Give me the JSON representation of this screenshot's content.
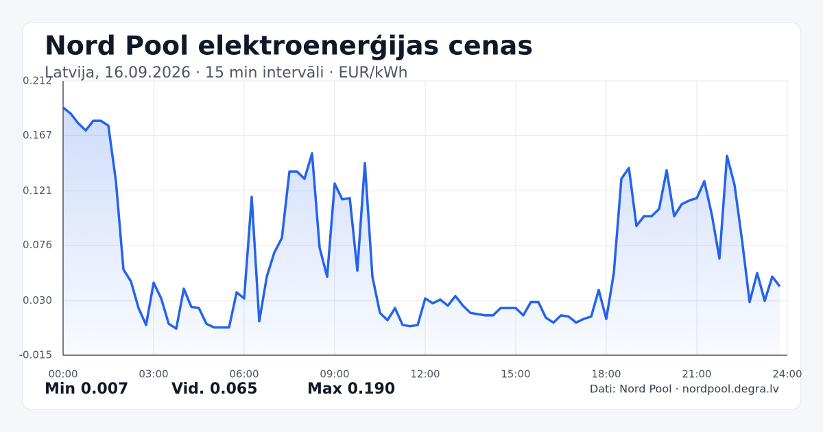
{
  "chart_data": {
    "type": "line",
    "title": "Nord Pool elektroenerģijas cenas",
    "subtitle": "Latvija, 16.09.2026 · 15 min intervāli · EUR/kWh",
    "x": [
      0,
      0.25,
      0.5,
      0.75,
      1,
      1.25,
      1.5,
      1.75,
      2,
      2.25,
      2.5,
      2.75,
      3,
      3.25,
      3.5,
      3.75,
      4,
      4.25,
      4.5,
      4.75,
      5,
      5.25,
      5.5,
      5.75,
      6,
      6.25,
      6.5,
      6.75,
      7,
      7.25,
      7.5,
      7.75,
      8,
      8.25,
      8.5,
      8.75,
      9,
      9.25,
      9.5,
      9.75,
      10,
      10.25,
      10.5,
      10.75,
      11,
      11.25,
      11.5,
      11.75,
      12,
      12.25,
      12.5,
      12.75,
      13,
      13.25,
      13.5,
      13.75,
      14,
      14.25,
      14.5,
      14.75,
      15,
      15.25,
      15.5,
      15.75,
      16,
      16.25,
      16.5,
      16.75,
      17,
      17.25,
      17.5,
      17.75,
      18,
      18.25,
      18.5,
      18.75,
      19,
      19.25,
      19.5,
      19.75,
      20,
      20.25,
      20.5,
      20.75,
      21,
      21.25,
      21.5,
      21.75,
      22,
      22.25,
      22.5,
      22.75,
      23,
      23.25,
      23.5,
      23.75
    ],
    "values": [
      0.19,
      0.185,
      0.177,
      0.171,
      0.179,
      0.179,
      0.175,
      0.129,
      0.056,
      0.046,
      0.024,
      0.01,
      0.045,
      0.032,
      0.011,
      0.007,
      0.04,
      0.025,
      0.024,
      0.011,
      0.008,
      0.008,
      0.008,
      0.037,
      0.032,
      0.116,
      0.013,
      0.05,
      0.07,
      0.082,
      0.137,
      0.137,
      0.131,
      0.152,
      0.074,
      0.05,
      0.127,
      0.114,
      0.115,
      0.055,
      0.144,
      0.05,
      0.02,
      0.014,
      0.024,
      0.01,
      0.009,
      0.01,
      0.032,
      0.028,
      0.031,
      0.026,
      0.034,
      0.026,
      0.02,
      0.019,
      0.018,
      0.018,
      0.024,
      0.024,
      0.024,
      0.018,
      0.029,
      0.029,
      0.016,
      0.012,
      0.018,
      0.017,
      0.012,
      0.015,
      0.017,
      0.039,
      0.015,
      0.053,
      0.131,
      0.14,
      0.092,
      0.1,
      0.1,
      0.106,
      0.138,
      0.1,
      0.11,
      0.113,
      0.115,
      0.129,
      0.101,
      0.065,
      0.15,
      0.126,
      0.08,
      0.029,
      0.053,
      0.03,
      0.05,
      0.042
    ],
    "color": "#2563eb",
    "xlim": [
      0,
      24
    ],
    "xticks": [
      {
        "value": 0,
        "label": "00:00"
      },
      {
        "value": 3,
        "label": "03:00"
      },
      {
        "value": 6,
        "label": "06:00"
      },
      {
        "value": 9,
        "label": "09:00"
      },
      {
        "value": 12,
        "label": "12:00"
      },
      {
        "value": 15,
        "label": "15:00"
      },
      {
        "value": 18,
        "label": "18:00"
      },
      {
        "value": 21,
        "label": "21:00"
      },
      {
        "value": 24,
        "label": "24:00"
      }
    ],
    "ylim": [
      -0.015,
      0.212
    ],
    "yticks": [
      -0.015,
      {
        "value": 0.03,
        "label": "0.030"
      },
      0.076,
      0.121,
      0.167,
      0.212
    ],
    "grid": true,
    "stats": [
      "Min 0.007",
      "Vid. 0.065",
      "Max 0.190"
    ],
    "source": "Dati: Nord Pool · nordpool.degra.lv"
  }
}
